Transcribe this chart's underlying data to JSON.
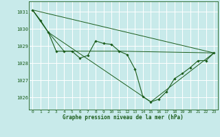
{
  "title": "Graphe pression niveau de la mer (hPa)",
  "background_color": "#c8eaea",
  "line_color": "#1a5c1a",
  "grid_color": "#ffffff",
  "xlim": [
    -0.5,
    23.5
  ],
  "ylim": [
    1025.3,
    1031.6
  ],
  "yticks": [
    1026,
    1027,
    1028,
    1029,
    1030,
    1031
  ],
  "xticks": [
    0,
    1,
    2,
    3,
    4,
    5,
    6,
    7,
    8,
    9,
    10,
    11,
    12,
    13,
    14,
    15,
    16,
    17,
    18,
    19,
    20,
    21,
    22,
    23
  ],
  "main_series": {
    "x": [
      0,
      1,
      2,
      3,
      4,
      5,
      6,
      7,
      8,
      9,
      10,
      11,
      12,
      13,
      14,
      15,
      16,
      17,
      18,
      19,
      20,
      21,
      22,
      23
    ],
    "y": [
      1031.1,
      1030.5,
      1029.8,
      1028.7,
      1028.7,
      1028.7,
      1028.3,
      1028.45,
      1029.3,
      1029.15,
      1029.1,
      1028.7,
      1028.5,
      1027.65,
      1026.05,
      1025.75,
      1025.9,
      1026.35,
      1027.1,
      1027.4,
      1027.75,
      1028.15,
      1028.15,
      1028.6
    ]
  },
  "line1": {
    "x": [
      0,
      23
    ],
    "y": [
      1031.1,
      1028.6
    ]
  },
  "line2": {
    "x": [
      0,
      2,
      15,
      23
    ],
    "y": [
      1031.1,
      1029.8,
      1025.75,
      1028.6
    ]
  },
  "line3": {
    "x": [
      0,
      2,
      4,
      11,
      23
    ],
    "y": [
      1031.1,
      1029.8,
      1028.7,
      1028.7,
      1028.6
    ]
  }
}
